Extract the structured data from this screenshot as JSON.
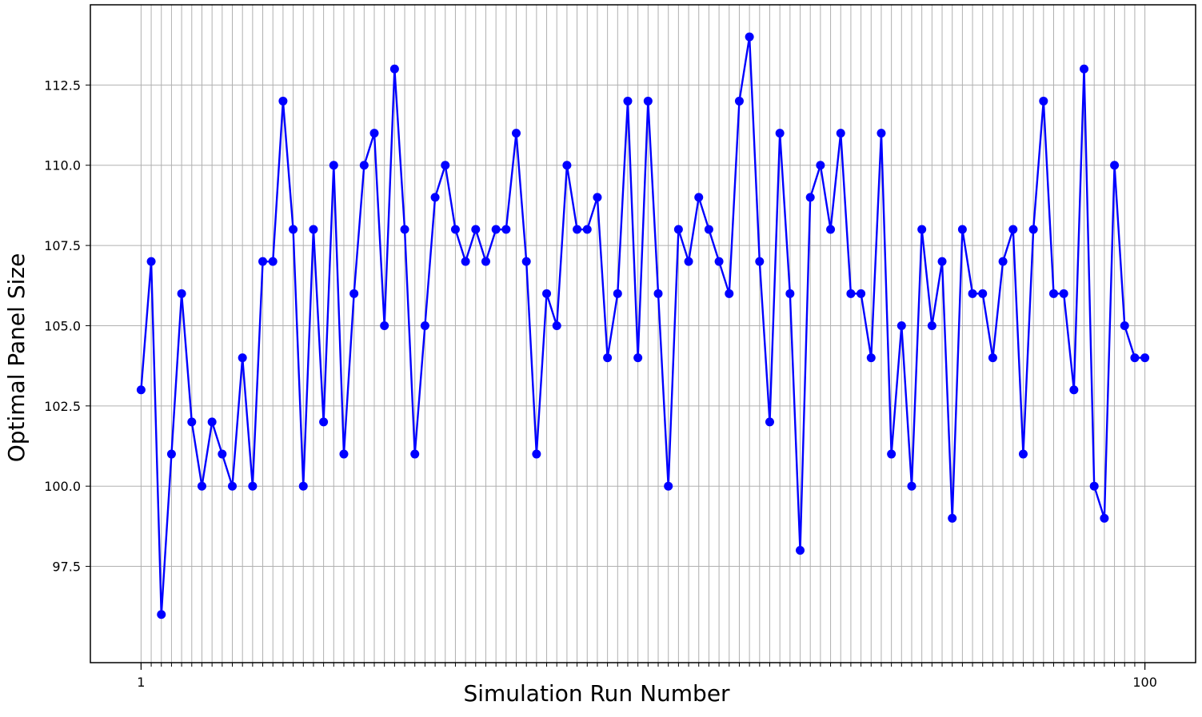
{
  "chart_data": {
    "type": "line",
    "title": "",
    "xlabel": "Simulation Run Number",
    "ylabel": "Optimal Panel Size",
    "x_tick_labels": [
      "1",
      "100"
    ],
    "xlim": [
      -4,
      105
    ],
    "ylim": [
      94.5,
      115
    ],
    "yticks": [
      97.5,
      100.0,
      102.5,
      105.0,
      107.5,
      110.0,
      112.5
    ],
    "ytick_labels": [
      "97.5",
      "100.0",
      "102.5",
      "105.0",
      "107.5",
      "110.0",
      "112.5"
    ],
    "grid": true,
    "series": [
      {
        "color": "#0000ff",
        "marker": "circle",
        "x": [
          1,
          2,
          3,
          4,
          5,
          6,
          7,
          8,
          9,
          10,
          11,
          12,
          13,
          14,
          15,
          16,
          17,
          18,
          19,
          20,
          21,
          22,
          23,
          24,
          25,
          26,
          27,
          28,
          29,
          30,
          31,
          32,
          33,
          34,
          35,
          36,
          37,
          38,
          39,
          40,
          41,
          42,
          43,
          44,
          45,
          46,
          47,
          48,
          49,
          50,
          51,
          52,
          53,
          54,
          55,
          56,
          57,
          58,
          59,
          60,
          61,
          62,
          63,
          64,
          65,
          66,
          67,
          68,
          69,
          70,
          71,
          72,
          73,
          74,
          75,
          76,
          77,
          78,
          79,
          80,
          81,
          82,
          83,
          84,
          85,
          86,
          87,
          88,
          89,
          90,
          91,
          92,
          93,
          94,
          95,
          96,
          97,
          98,
          99,
          100
        ],
        "values": [
          103,
          107,
          96,
          101,
          106,
          102,
          100,
          102,
          101,
          100,
          104,
          100,
          107,
          107,
          112,
          108,
          100,
          108,
          102,
          110,
          101,
          106,
          110,
          111,
          105,
          113,
          108,
          101,
          105,
          109,
          110,
          108,
          107,
          108,
          107,
          108,
          108,
          111,
          107,
          101,
          106,
          105,
          110,
          108,
          108,
          109,
          104,
          106,
          112,
          104,
          112,
          106,
          100,
          108,
          107,
          109,
          108,
          107,
          106,
          112,
          114,
          107,
          102,
          111,
          106,
          98,
          109,
          110,
          108,
          111,
          106,
          106,
          104,
          111,
          101,
          105,
          100,
          108,
          105,
          107,
          99,
          108,
          106,
          106,
          104,
          107,
          108,
          101,
          108,
          112,
          106,
          106,
          103,
          113,
          100,
          99,
          110,
          105,
          104,
          104
        ]
      }
    ]
  }
}
